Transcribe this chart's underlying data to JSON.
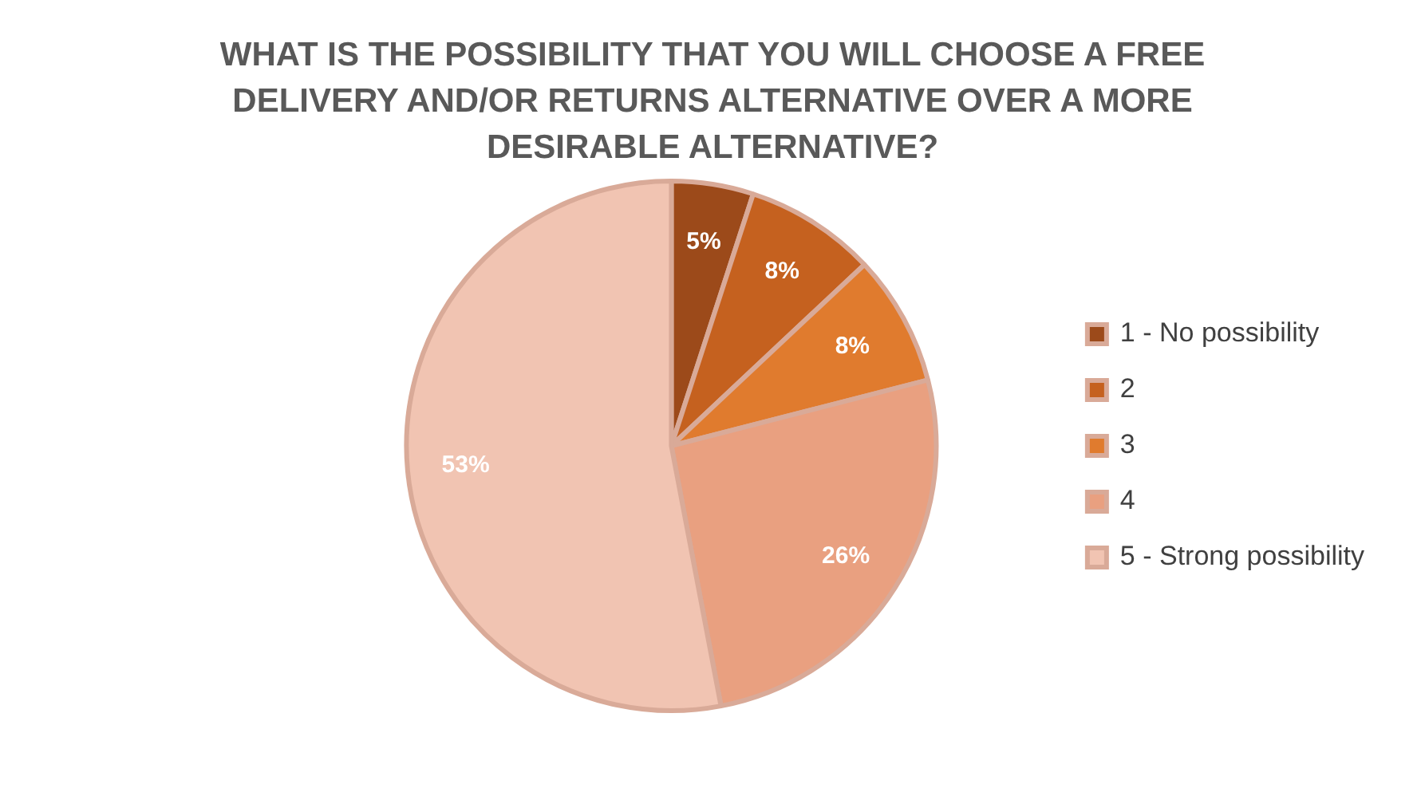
{
  "chart_data": {
    "type": "pie",
    "title": "WHAT IS THE POSSIBILITY THAT YOU WILL CHOOSE A FREE DELIVERY AND/OR RETURNS ALTERNATIVE OVER A MORE DESIRABLE ALTERNATIVE?",
    "categories": [
      "1 - No possibility",
      "2",
      "3",
      "4",
      "5 - Strong possibility"
    ],
    "values": [
      5,
      8,
      8,
      26,
      53
    ],
    "value_labels": [
      "5%",
      "8%",
      "8%",
      "26%",
      "53%"
    ],
    "colors": [
      "#9c4a1a",
      "#c5611f",
      "#e07b2e",
      "#e9a080",
      "#f1c4b2"
    ],
    "legend": "right"
  }
}
